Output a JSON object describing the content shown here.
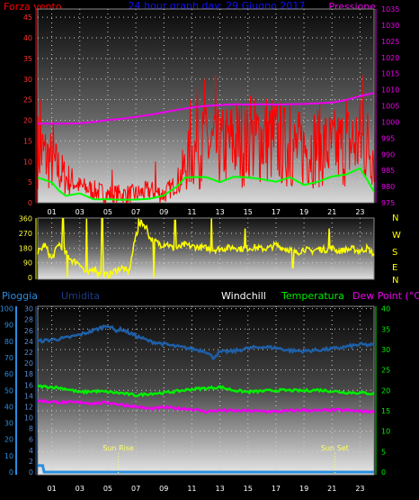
{
  "header": {
    "left_title": "Forza vento",
    "center_title": "24 hour graph day: 29 Giugno 2017",
    "right_title": "Pressione"
  },
  "labels": {
    "rain_legend": "Pioggia",
    "humidity_legend": "Umidita",
    "windchill_legend": "Windchill",
    "temp_legend": "Temperatura",
    "dewpoint_legend": "Dew Point (°C)",
    "sunrise": "Sun Rise",
    "sunset": "Sun Set"
  },
  "colors": {
    "wind": "#ff0000",
    "gust_low": "#00ff00",
    "pressure": "#ee00ee",
    "direction": "#ffff00",
    "humidity": "#1e5fa8",
    "temperature": "#00ee00",
    "dewpoint": "#ee00ee",
    "rain": "#2a8ee0",
    "title": "#1010ff"
  },
  "chart_data": [
    {
      "type": "line",
      "title": "24 hour graph day: 29 Giugno 2017",
      "x_ticks": [
        "01",
        "03",
        "05",
        "07",
        "09",
        "11",
        "13",
        "15",
        "17",
        "19",
        "21",
        "23"
      ],
      "y_left_ticks": [
        0,
        5,
        10,
        15,
        20,
        25,
        30,
        35,
        40,
        45
      ],
      "y_right_ticks": [
        975,
        980,
        985,
        990,
        995,
        1000,
        1005,
        1010,
        1015,
        1020,
        1025,
        1030,
        1035
      ],
      "ylim_left": [
        0,
        47
      ],
      "ylim_right": [
        975,
        1035
      ],
      "series": [
        {
          "name": "Forza vento",
          "axis": "left",
          "style": "noisy-fill",
          "points": [
            [
              0,
              13
            ],
            [
              1,
              10
            ],
            [
              2,
              6
            ],
            [
              3,
              4
            ],
            [
              4,
              3
            ],
            [
              5,
              2
            ],
            [
              6,
              2
            ],
            [
              7,
              2
            ],
            [
              8,
              3
            ],
            [
              9,
              2
            ],
            [
              10,
              5
            ],
            [
              11,
              12
            ],
            [
              12,
              14
            ],
            [
              13,
              13
            ],
            [
              14,
              15
            ],
            [
              15,
              14
            ],
            [
              16,
              16
            ],
            [
              17,
              15
            ],
            [
              18,
              13
            ],
            [
              19,
              13
            ],
            [
              20,
              14
            ],
            [
              21,
              13
            ],
            [
              22,
              14
            ],
            [
              23,
              15
            ],
            [
              24,
              13
            ]
          ],
          "peaks": [
            [
              0.2,
              25
            ],
            [
              1.1,
              20
            ],
            [
              5.3,
              8
            ],
            [
              8.4,
              10
            ],
            [
              10.9,
              25
            ],
            [
              11.4,
              28
            ],
            [
              11.9,
              30
            ],
            [
              12.7,
              31
            ],
            [
              15.2,
              26
            ],
            [
              18.0,
              24
            ],
            [
              22.0,
              25
            ],
            [
              23.2,
              31
            ]
          ]
        },
        {
          "name": "",
          "axis": "left",
          "style": "line",
          "points": [
            [
              0,
              6
            ],
            [
              1,
              5
            ],
            [
              1.5,
              3
            ],
            [
              2,
              2
            ],
            [
              3,
              2
            ],
            [
              4,
              1
            ],
            [
              5,
              1
            ],
            [
              6,
              1
            ],
            [
              7,
              1
            ],
            [
              8,
              1
            ],
            [
              9,
              2
            ],
            [
              10,
              4
            ],
            [
              10.5,
              6
            ],
            [
              11,
              6
            ],
            [
              12,
              6
            ],
            [
              13,
              5
            ],
            [
              14,
              6
            ],
            [
              15,
              6
            ],
            [
              16,
              6
            ],
            [
              17,
              5
            ],
            [
              18,
              6
            ],
            [
              19,
              4
            ],
            [
              20,
              5
            ],
            [
              21,
              6
            ],
            [
              22,
              7
            ],
            [
              23,
              8
            ],
            [
              23.5,
              6
            ],
            [
              24,
              3
            ]
          ]
        },
        {
          "name": "Pressione",
          "axis": "right",
          "style": "line",
          "points": [
            [
              0,
              999.5
            ],
            [
              1,
              999.5
            ],
            [
              2,
              999.5
            ],
            [
              3,
              999.6
            ],
            [
              4,
              1000
            ],
            [
              5,
              1000.6
            ],
            [
              6,
              1001
            ],
            [
              7,
              1001.6
            ],
            [
              8,
              1002.2
            ],
            [
              9,
              1003
            ],
            [
              10,
              1003.8
            ],
            [
              11,
              1004.5
            ],
            [
              12,
              1005
            ],
            [
              13,
              1005.2
            ],
            [
              14,
              1005.5
            ],
            [
              15,
              1005.4
            ],
            [
              16,
              1005.5
            ],
            [
              17,
              1005.4
            ],
            [
              18,
              1005.5
            ],
            [
              19,
              1005.6
            ],
            [
              20,
              1005.8
            ],
            [
              21,
              1006
            ],
            [
              22,
              1006.8
            ],
            [
              23,
              1008
            ],
            [
              24,
              1009
            ]
          ]
        }
      ]
    },
    {
      "type": "line",
      "title": "",
      "x_ticks": [],
      "y_left_ticks": [
        0,
        90,
        180,
        270,
        360
      ],
      "y_right_ticks": [
        "N",
        "W",
        "S",
        "E",
        "N"
      ],
      "ylim": [
        0,
        360
      ],
      "series": [
        {
          "name": "",
          "style": "line",
          "points": [
            [
              0,
              150
            ],
            [
              0.5,
              200
            ],
            [
              1,
              110
            ],
            [
              1.5,
              210
            ],
            [
              2,
              150
            ],
            [
              2.5,
              100
            ],
            [
              3,
              90
            ],
            [
              3.3,
              40
            ],
            [
              3.6,
              20
            ],
            [
              4,
              60
            ],
            [
              4.5,
              30
            ],
            [
              5,
              10
            ],
            [
              5.5,
              40
            ],
            [
              6,
              60
            ],
            [
              6.5,
              30
            ],
            [
              7,
              260
            ],
            [
              7.4,
              340
            ],
            [
              7.8,
              300
            ],
            [
              8,
              240
            ],
            [
              8.4,
              220
            ],
            [
              8.8,
              200
            ],
            [
              9.2,
              210
            ],
            [
              9.6,
              180
            ],
            [
              10,
              180
            ],
            [
              10.5,
              200
            ],
            [
              11,
              190
            ],
            [
              11.5,
              185
            ],
            [
              12,
              180
            ],
            [
              12.5,
              170
            ],
            [
              13,
              175
            ],
            [
              13.5,
              180
            ],
            [
              14,
              185
            ],
            [
              14.5,
              175
            ],
            [
              15,
              180
            ],
            [
              15.5,
              185
            ],
            [
              16,
              175
            ],
            [
              16.5,
              180
            ],
            [
              17,
              200
            ],
            [
              17.5,
              180
            ],
            [
              18,
              170
            ],
            [
              18.5,
              150
            ],
            [
              19,
              175
            ],
            [
              19.5,
              160
            ],
            [
              20,
              175
            ],
            [
              20.5,
              170
            ],
            [
              21,
              180
            ],
            [
              21.5,
              160
            ],
            [
              22,
              170
            ],
            [
              22.5,
              175
            ],
            [
              23,
              160
            ],
            [
              23.5,
              180
            ],
            [
              24,
              140
            ]
          ],
          "spikes": [
            [
              1.8,
              360
            ],
            [
              2.1,
              0
            ],
            [
              3.5,
              360
            ],
            [
              4.3,
              0
            ],
            [
              4.6,
              360
            ],
            [
              7.2,
              360
            ],
            [
              8.3,
              0
            ],
            [
              9.8,
              350
            ],
            [
              12.4,
              360
            ],
            [
              14.8,
              300
            ],
            [
              18.2,
              60
            ],
            [
              20.8,
              300
            ]
          ]
        }
      ]
    },
    {
      "type": "line",
      "title": "",
      "x_ticks": [
        "01",
        "03",
        "05",
        "07",
        "09",
        "11",
        "13",
        "15",
        "17",
        "19",
        "21",
        "23"
      ],
      "axes": {
        "rain": [
          0,
          10,
          20,
          30,
          40,
          50,
          60,
          70,
          80,
          90,
          100
        ],
        "humidity": [
          0,
          2,
          4,
          6,
          8,
          10,
          12,
          14,
          16,
          18,
          20,
          22,
          24,
          26,
          28,
          30
        ],
        "temperature": [
          0,
          5,
          10,
          15,
          20,
          25,
          30,
          35,
          40
        ]
      },
      "ylim_humidity": [
        0,
        30
      ],
      "ylim_temperature": [
        0,
        40
      ],
      "ylim_rain": [
        0,
        100
      ],
      "series": [
        {
          "name": "Umidita",
          "axis": "humidity",
          "points": [
            [
              0,
              24
            ],
            [
              1,
              24.3
            ],
            [
              2,
              24.6
            ],
            [
              3,
              25.2
            ],
            [
              4,
              26
            ],
            [
              5,
              27
            ],
            [
              5.5,
              26
            ],
            [
              6,
              26.2
            ],
            [
              7,
              25
            ],
            [
              8,
              24
            ],
            [
              9,
              23.5
            ],
            [
              10,
              23
            ],
            [
              11,
              22.6
            ],
            [
              12,
              22.2
            ],
            [
              12.5,
              21
            ],
            [
              13,
              22
            ],
            [
              14,
              22.2
            ],
            [
              15,
              22.7
            ],
            [
              16,
              23
            ],
            [
              17,
              22.8
            ],
            [
              18,
              22.3
            ],
            [
              19,
              22.2
            ],
            [
              20,
              22.4
            ],
            [
              21,
              22.6
            ],
            [
              22,
              23
            ],
            [
              23,
              23.4
            ],
            [
              24,
              23.3
            ]
          ]
        },
        {
          "name": "Temperatura",
          "axis": "temperature",
          "points": [
            [
              0,
              21
            ],
            [
              1,
              20.8
            ],
            [
              2,
              20.4
            ],
            [
              3,
              19.5
            ],
            [
              4,
              19.8
            ],
            [
              5,
              19.6
            ],
            [
              6,
              19.3
            ],
            [
              7,
              18.8
            ],
            [
              8,
              19.2
            ],
            [
              9,
              19.4
            ],
            [
              10,
              19.8
            ],
            [
              11,
              20.3
            ],
            [
              12,
              20.5
            ],
            [
              13,
              20.8
            ],
            [
              14,
              20
            ],
            [
              15,
              19.6
            ],
            [
              16,
              19.8
            ],
            [
              17,
              20
            ],
            [
              18,
              20
            ],
            [
              19,
              19.9
            ],
            [
              20,
              20.1
            ],
            [
              21,
              19.8
            ],
            [
              22,
              19.5
            ],
            [
              23,
              19.4
            ],
            [
              24,
              19.2
            ]
          ]
        },
        {
          "name": "Dew Point (°C)",
          "axis": "temperature",
          "points": [
            [
              0,
              17.5
            ],
            [
              1,
              17.2
            ],
            [
              2,
              17
            ],
            [
              3,
              17.1
            ],
            [
              4,
              16.8
            ],
            [
              5,
              17
            ],
            [
              6,
              16.5
            ],
            [
              7,
              16
            ],
            [
              8,
              15.5
            ],
            [
              9,
              15.8
            ],
            [
              10,
              15.6
            ],
            [
              11,
              15.4
            ],
            [
              12,
              14.8
            ],
            [
              13,
              15.1
            ],
            [
              14,
              15
            ],
            [
              15,
              15
            ],
            [
              16,
              14.9
            ],
            [
              17,
              14.8
            ],
            [
              18,
              15
            ],
            [
              19,
              15.2
            ],
            [
              20,
              15
            ],
            [
              21,
              15.2
            ],
            [
              22,
              15.1
            ],
            [
              23,
              14.9
            ],
            [
              24,
              14.8
            ]
          ]
        },
        {
          "name": "Pioggia",
          "axis": "rain",
          "points": [
            [
              0,
              4
            ],
            [
              0.35,
              4
            ],
            [
              0.45,
              0
            ],
            [
              24,
              0
            ]
          ]
        }
      ],
      "markers": [
        {
          "label": "Sun Rise",
          "x": 5.75
        },
        {
          "label": "Sun Set",
          "x": 21.2
        }
      ]
    }
  ]
}
